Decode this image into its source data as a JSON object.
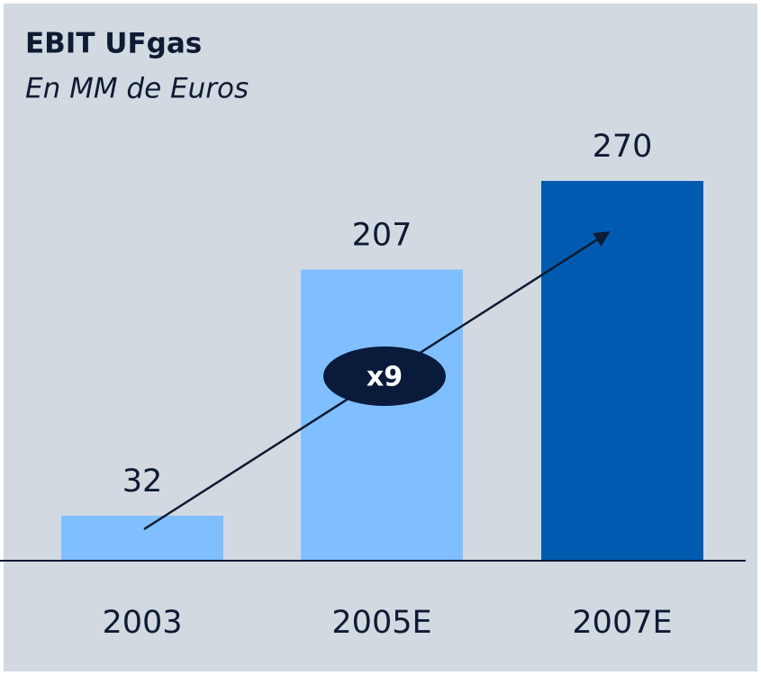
{
  "chart_data": {
    "type": "bar",
    "title": "EBIT UFgas",
    "subtitle": "En MM de Euros",
    "categories": [
      "2003",
      "2005E",
      "2007E"
    ],
    "values": [
      32,
      207,
      270
    ],
    "colors": [
      "#7fbfff",
      "#7fbfff",
      "#005bb0"
    ],
    "annotation": "x9"
  }
}
